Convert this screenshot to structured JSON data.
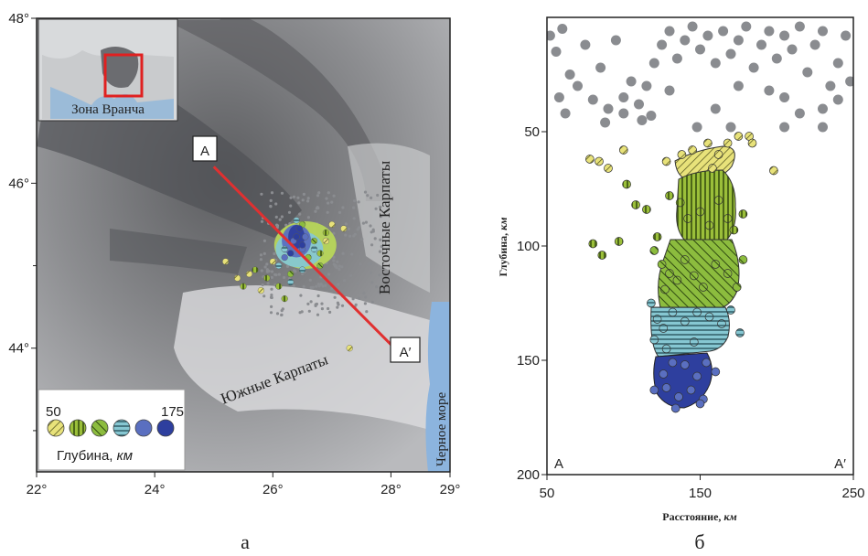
{
  "panel_a": {
    "caption": "а",
    "inset_label": "Зона Вранча",
    "profile_start_label": "A",
    "profile_end_label": "A′",
    "region_labels": {
      "east_carpathians": "Восточные Карпаты",
      "south_carpathians": "Южные Карпаты",
      "black_sea": "Черное море"
    },
    "legend": {
      "min_label": "50",
      "max_label": "175",
      "title": "Глубина,",
      "unit": "км"
    },
    "x_ticks": [
      "22°",
      "24°",
      "26°",
      "28°",
      "29°"
    ],
    "y_ticks": [
      "48°",
      "46°",
      "44°"
    ]
  },
  "panel_b": {
    "caption": "б",
    "ylabel": "Глубина,",
    "yunit": "км",
    "xlabel": "Расстояние,",
    "xunit": "км",
    "corner_left": "A",
    "corner_right": "A′",
    "x_ticks": [
      "50",
      "150",
      "250"
    ],
    "y_ticks": [
      "50",
      "100",
      "150",
      "200"
    ]
  },
  "colors": {
    "shallow_gray": "#8a8c90",
    "depth_50": "#e8e27a",
    "depth_75": "#9bbf3a",
    "depth_100": "#7fae3a",
    "depth_125": "#86c7d2",
    "depth_150": "#5a6fc0",
    "depth_175": "#2e3f9e",
    "profile_line": "#e03030",
    "inset_box": "#e02020"
  },
  "chart_data": [
    {
      "type": "scatter",
      "title": "",
      "xlabel": "",
      "ylabel": "",
      "xlim": [
        22,
        29
      ],
      "ylim": [
        42.5,
        48
      ],
      "profile": {
        "from": [
          25.0,
          46.2
        ],
        "to": [
          28.2,
          43.9
        ]
      },
      "depth_legend_range": [
        50,
        175
      ],
      "series": [
        {
          "name": "50",
          "points": [
            [
              25.2,
              45.05
            ],
            [
              25.4,
              44.85
            ],
            [
              25.6,
              44.9
            ],
            [
              25.8,
              44.7
            ],
            [
              26.0,
              45.05
            ],
            [
              27.2,
              45.45
            ],
            [
              27.3,
              44.0
            ],
            [
              26.9,
              45.3
            ],
            [
              27.0,
              45.5
            ]
          ]
        },
        {
          "name": "75",
          "points": [
            [
              25.5,
              44.75
            ],
            [
              25.7,
              44.95
            ],
            [
              26.1,
              44.75
            ],
            [
              26.9,
              45.4
            ],
            [
              26.8,
              45.15
            ],
            [
              26.2,
              44.6
            ],
            [
              25.9,
              44.85
            ]
          ]
        },
        {
          "name": "100",
          "points": [
            [
              26.5,
              45.5
            ],
            [
              26.7,
              45.3
            ],
            [
              26.6,
              45.1
            ],
            [
              26.3,
              44.9
            ],
            [
              26.8,
              45.0
            ],
            [
              26.4,
              45.35
            ]
          ]
        },
        {
          "name": "125",
          "points": [
            [
              26.2,
              45.2
            ],
            [
              26.5,
              44.95
            ],
            [
              26.7,
              45.2
            ],
            [
              26.1,
              45.0
            ],
            [
              26.4,
              45.55
            ],
            [
              26.3,
              44.8
            ]
          ]
        },
        {
          "name": "150",
          "points": [
            [
              26.35,
              45.3
            ],
            [
              26.45,
              45.45
            ],
            [
              26.5,
              45.2
            ],
            [
              26.2,
              45.1
            ],
            [
              26.55,
              45.35
            ]
          ]
        },
        {
          "name": "175",
          "points": [
            [
              26.4,
              45.35
            ],
            [
              26.5,
              45.25
            ],
            [
              26.3,
              45.15
            ],
            [
              26.45,
              45.45
            ]
          ]
        }
      ]
    },
    {
      "type": "scatter",
      "title": "",
      "xlabel": "Расстояние, км",
      "ylabel": "Глубина, км",
      "xlim": [
        50,
        250
      ],
      "ylim": [
        200,
        0
      ],
      "series": [
        {
          "name": "shallow",
          "points": [
            [
              52,
              8
            ],
            [
              56,
              15
            ],
            [
              60,
              5
            ],
            [
              65,
              25
            ],
            [
              70,
              30
            ],
            [
              75,
              12
            ],
            [
              80,
              36
            ],
            [
              85,
              22
            ],
            [
              90,
              40
            ],
            [
              95,
              10
            ],
            [
              100,
              42
            ],
            [
              105,
              28
            ],
            [
              110,
              38
            ],
            [
              112,
              45
            ],
            [
              115,
              30
            ],
            [
              120,
              20
            ],
            [
              125,
              12
            ],
            [
              130,
              6
            ],
            [
              135,
              18
            ],
            [
              140,
              10
            ],
            [
              145,
              4
            ],
            [
              150,
              14
            ],
            [
              155,
              8
            ],
            [
              160,
              20
            ],
            [
              165,
              6
            ],
            [
              170,
              16
            ],
            [
              175,
              10
            ],
            [
              180,
              4
            ],
            [
              185,
              22
            ],
            [
              190,
              12
            ],
            [
              195,
              6
            ],
            [
              200,
              18
            ],
            [
              205,
              8
            ],
            [
              210,
              14
            ],
            [
              215,
              4
            ],
            [
              220,
              24
            ],
            [
              225,
              12
            ],
            [
              230,
              6
            ],
            [
              235,
              30
            ],
            [
              240,
              20
            ],
            [
              245,
              8
            ],
            [
              248,
              28
            ],
            [
              205,
              35
            ],
            [
              195,
              32
            ],
            [
              175,
              30
            ],
            [
              160,
              40
            ],
            [
              130,
              32
            ],
            [
              118,
              43
            ],
            [
              100,
              35
            ],
            [
              58,
              35
            ],
            [
              62,
              42
            ],
            [
              88,
              46
            ],
            [
              148,
              48
            ],
            [
              215,
              42
            ],
            [
              230,
              40
            ],
            [
              240,
              36
            ],
            [
              230,
              48
            ],
            [
              205,
              48
            ],
            [
              170,
              48
            ]
          ]
        },
        {
          "name": "50",
          "points": [
            [
              78,
              62
            ],
            [
              84,
              63
            ],
            [
              90,
              66
            ],
            [
              100,
              58
            ],
            [
              128,
              63
            ],
            [
              138,
              60
            ],
            [
              145,
              58
            ],
            [
              155,
              55
            ],
            [
              162,
              60
            ],
            [
              168,
              55
            ],
            [
              175,
              52
            ],
            [
              182,
              52
            ],
            [
              184,
              55
            ],
            [
              198,
              67
            ],
            [
              158,
              66
            ]
          ]
        },
        {
          "name": "75",
          "points": [
            [
              102,
              73
            ],
            [
              108,
              82
            ],
            [
              115,
              84
            ],
            [
              122,
              96
            ],
            [
              80,
              99
            ],
            [
              86,
              104
            ],
            [
              97,
              98
            ],
            [
              130,
              78
            ],
            [
              137,
              81
            ],
            [
              142,
              88
            ],
            [
              150,
              85
            ],
            [
              156,
              91
            ],
            [
              162,
              80
            ],
            [
              168,
              88
            ],
            [
              172,
              93
            ],
            [
              178,
              86
            ]
          ]
        },
        {
          "name": "100",
          "points": [
            [
              120,
              102
            ],
            [
              125,
              108
            ],
            [
              130,
              112
            ],
            [
              135,
              115
            ],
            [
              140,
              106
            ],
            [
              146,
              113
            ],
            [
              152,
              118
            ],
            [
              160,
              108
            ],
            [
              168,
              112
            ],
            [
              174,
              118
            ],
            [
              178,
              106
            ],
            [
              127,
              119
            ]
          ]
        },
        {
          "name": "125",
          "points": [
            [
              118,
              125
            ],
            [
              122,
              132
            ],
            [
              126,
              136
            ],
            [
              132,
              129
            ],
            [
              140,
              133
            ],
            [
              148,
              129
            ],
            [
              156,
              131
            ],
            [
              164,
              134
            ],
            [
              170,
              128
            ],
            [
              176,
              138
            ],
            [
              120,
              141
            ],
            [
              128,
              145
            ],
            [
              146,
              142
            ]
          ]
        },
        {
          "name": "150",
          "points": [
            [
              126,
              156
            ],
            [
              132,
              151
            ],
            [
              140,
              152
            ],
            [
              148,
              157
            ],
            [
              154,
              151
            ],
            [
              160,
              155
            ],
            [
              128,
              162
            ],
            [
              136,
              166
            ],
            [
              144,
              163
            ],
            [
              152,
              167
            ],
            [
              120,
              163
            ],
            [
              134,
              171
            ],
            [
              150,
              169
            ]
          ]
        }
      ]
    }
  ]
}
